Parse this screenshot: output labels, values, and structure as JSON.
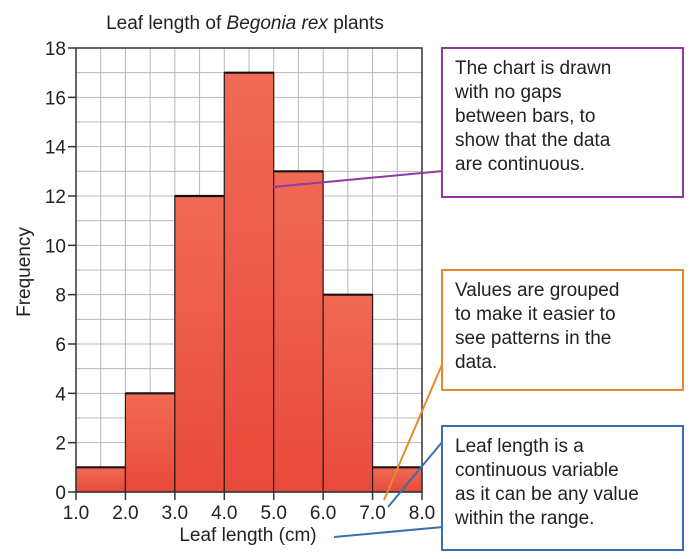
{
  "chart_data": {
    "type": "bar",
    "title": {
      "before": "Leaf length of ",
      "italic": "Begonia rex",
      "after": " plants"
    },
    "xlabel": "Leaf length (cm)",
    "ylabel": "Frequency",
    "bins": [
      [
        1.0,
        2.0
      ],
      [
        2.0,
        3.0
      ],
      [
        3.0,
        4.0
      ],
      [
        4.0,
        5.0
      ],
      [
        5.0,
        6.0
      ],
      [
        6.0,
        7.0
      ],
      [
        7.0,
        8.0
      ]
    ],
    "values": [
      1,
      4,
      12,
      17,
      13,
      8,
      1
    ],
    "x_ticks": [
      "1.0",
      "2.0",
      "3.0",
      "4.0",
      "5.0",
      "6.0",
      "7.0",
      "8.0"
    ],
    "y_ticks": [
      "0",
      "2",
      "4",
      "6",
      "8",
      "10",
      "12",
      "14",
      "16",
      "18"
    ],
    "xlim": [
      1.0,
      8.0
    ],
    "ylim": [
      0,
      18
    ],
    "grid": true,
    "bar_color": "#ef5a44"
  },
  "annotations": {
    "purple": {
      "lines": [
        "The chart is drawn",
        "with no gaps",
        "between bars, to",
        "show that the data",
        "are continuous."
      ],
      "color": "#8e3a9e"
    },
    "orange": {
      "lines": [
        "Values are grouped",
        "to make it easier to",
        "see patterns in the",
        "data."
      ],
      "color": "#e48a2c"
    },
    "blue": {
      "lines": [
        "Leaf length is a",
        "continuous variable",
        "as it can be any value",
        "within the range."
      ],
      "color": "#3a6fb0"
    }
  }
}
